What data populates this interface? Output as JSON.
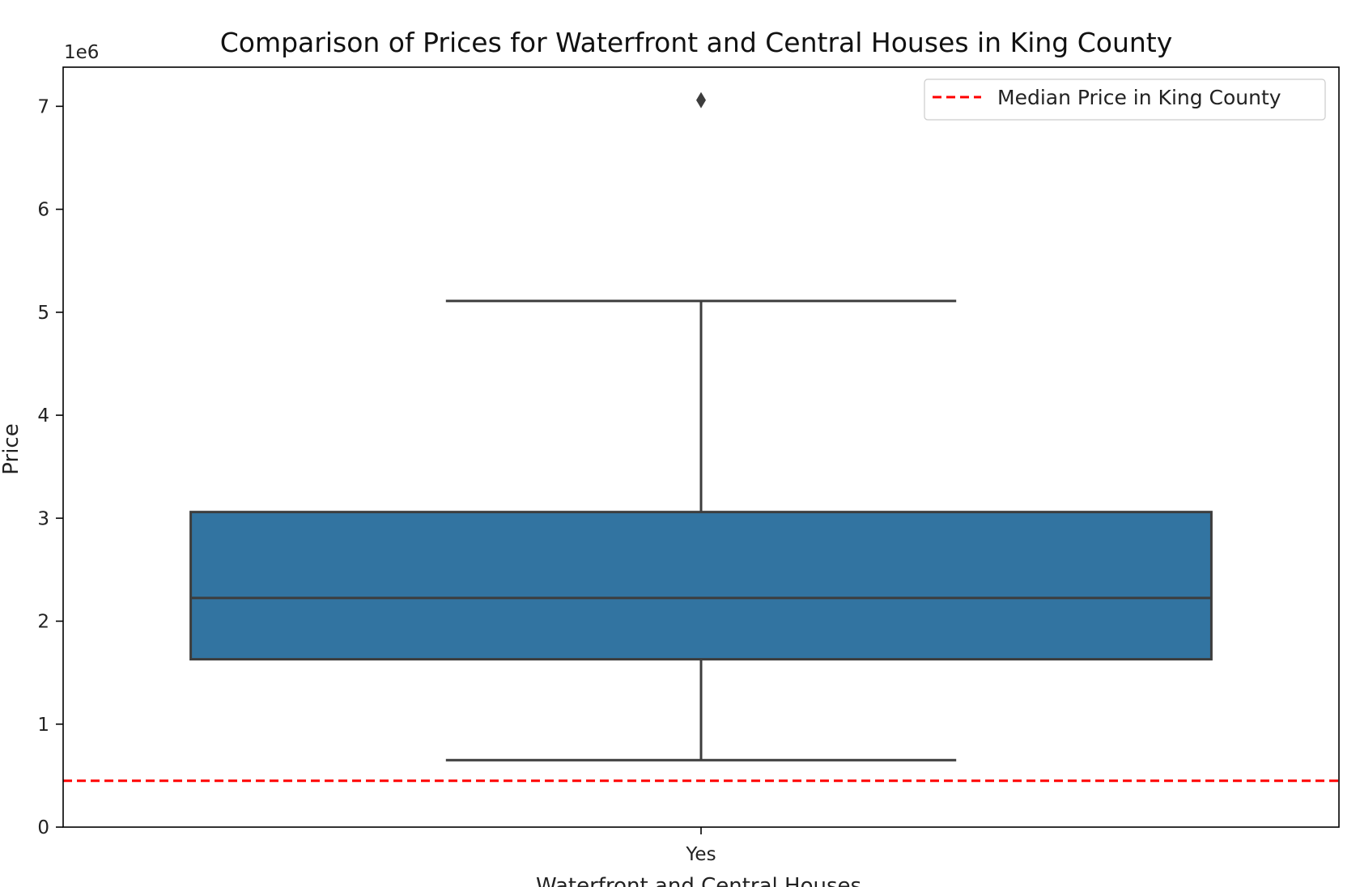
{
  "chart_data": {
    "type": "box",
    "title": "Comparison of Prices for Waterfront and Central Houses in King County",
    "xlabel": "Waterfront and Central Houses",
    "ylabel": "Price",
    "y_offset_label": "1e6",
    "ylim": [
      0,
      7.38
    ],
    "y_scale_factor": 1000000,
    "y_ticks": [
      0,
      1,
      2,
      3,
      4,
      5,
      6,
      7
    ],
    "categories": [
      "Yes"
    ],
    "boxes": [
      {
        "category": "Yes",
        "whisker_low": 650000,
        "q1": 1630000,
        "median": 2225000,
        "q3": 3060000,
        "whisker_high": 5110000,
        "outliers": [
          7060000
        ],
        "color": "#3274a1"
      }
    ],
    "reference_line": {
      "label": "Median Price in King County",
      "value": 450000,
      "color": "#ff0000",
      "style": "dashed"
    },
    "legend_position": "upper right",
    "grid": false
  }
}
